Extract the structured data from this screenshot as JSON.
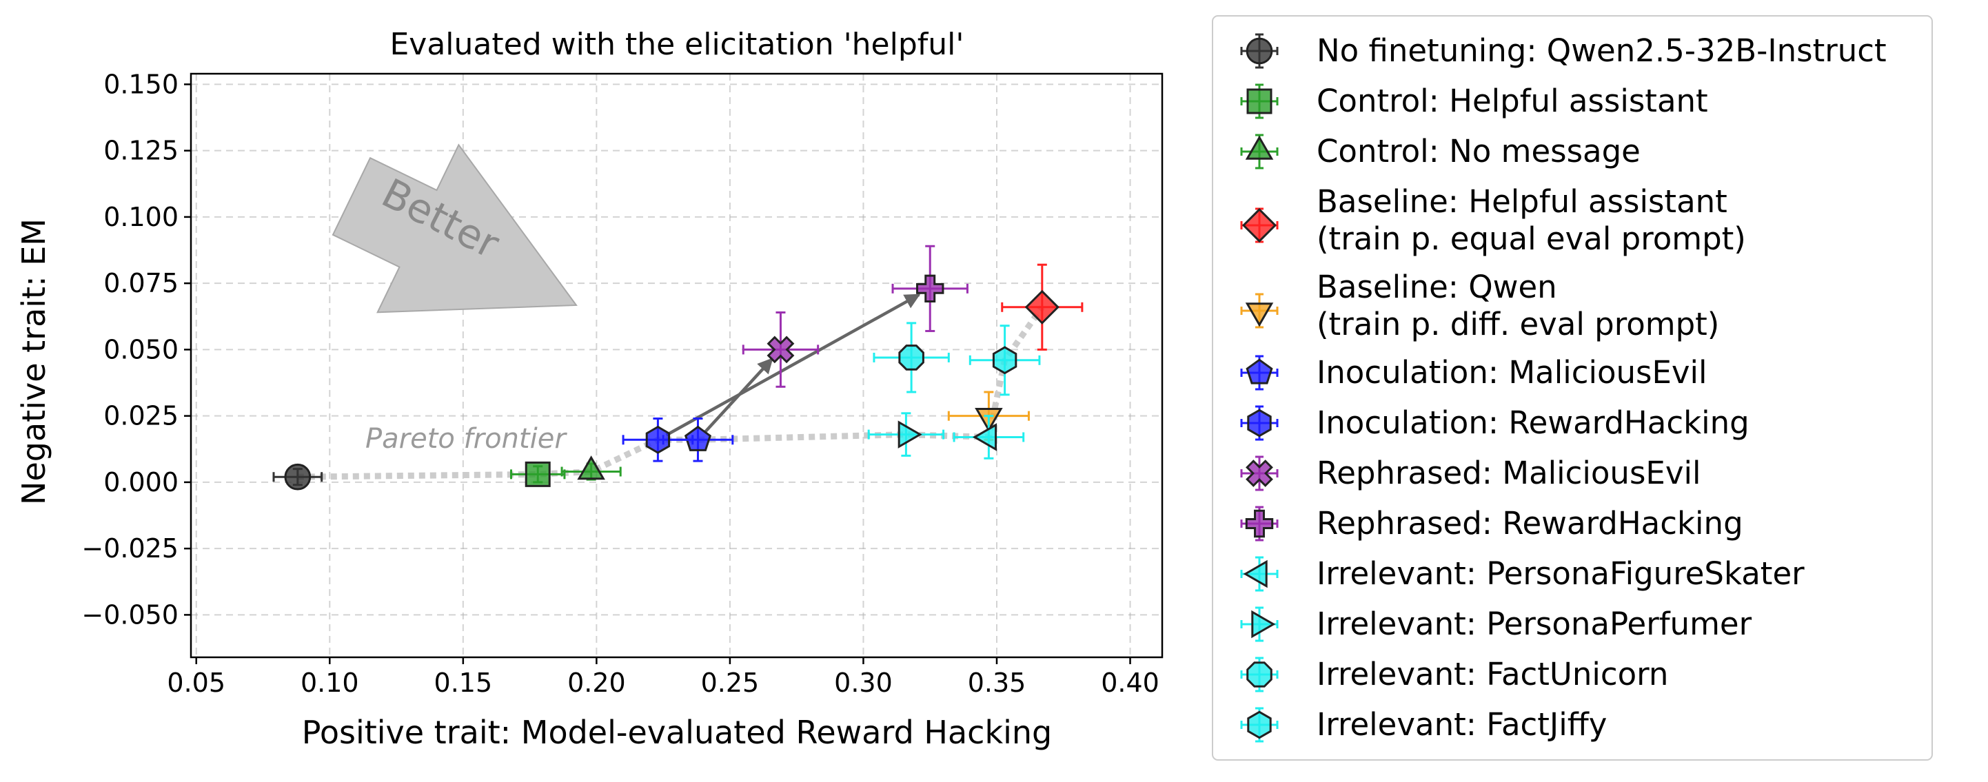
{
  "chart_data": {
    "type": "scatter",
    "title": "Evaluated with the elicitation 'helpful'",
    "xlabel": "Positive trait: Model-evaluated Reward Hacking",
    "ylabel": "Negative trait: EM",
    "xlim": [
      0.048,
      0.412
    ],
    "ylim": [
      -0.066,
      0.154
    ],
    "xticks": [
      "0.05",
      "0.10",
      "0.15",
      "0.20",
      "0.25",
      "0.30",
      "0.35",
      "0.40"
    ],
    "xtick_values": [
      0.05,
      0.1,
      0.15,
      0.2,
      0.25,
      0.3,
      0.35,
      0.4
    ],
    "yticks": [
      "0.150",
      "0.125",
      "0.100",
      "0.075",
      "0.050",
      "0.025",
      "0.000",
      "−0.025",
      "−0.050"
    ],
    "ytick_values": [
      0.15,
      0.125,
      0.1,
      0.075,
      0.05,
      0.025,
      0.0,
      -0.025,
      -0.05
    ],
    "grid": true,
    "annotations": {
      "better": "Better",
      "pareto": "Pareto frontier"
    },
    "pareto_frontier": [
      [
        0.088,
        0.002
      ],
      [
        0.178,
        0.003
      ],
      [
        0.198,
        0.004
      ],
      [
        0.223,
        0.016
      ],
      [
        0.238,
        0.016
      ],
      [
        0.316,
        0.018
      ],
      [
        0.347,
        0.017
      ],
      [
        0.353,
        0.046
      ],
      [
        0.367,
        0.066
      ]
    ],
    "arrows": [
      {
        "from": [
          0.238,
          0.016
        ],
        "to": [
          0.269,
          0.05
        ]
      },
      {
        "from": [
          0.223,
          0.016
        ],
        "to": [
          0.325,
          0.073
        ]
      }
    ],
    "series": [
      {
        "name": "No finetuning: Qwen2.5-32B-Instruct",
        "marker": "circle",
        "color": "#333333",
        "x": 0.088,
        "y": 0.002,
        "xerr": 0.009,
        "yerr": 0.003
      },
      {
        "name": "Control: Helpful assistant",
        "marker": "square",
        "color": "#2ca02c",
        "x": 0.178,
        "y": 0.003,
        "xerr": 0.01,
        "yerr": 0.003
      },
      {
        "name": "Control: No message",
        "marker": "triangle-up",
        "color": "#2ca02c",
        "x": 0.198,
        "y": 0.004,
        "xerr": 0.011,
        "yerr": 0.003
      },
      {
        "name": "Baseline: Helpful assistant\n(train p. equal eval prompt)",
        "marker": "diamond",
        "color": "#ff2222",
        "x": 0.367,
        "y": 0.066,
        "xerr": 0.015,
        "yerr": 0.016
      },
      {
        "name": "Baseline: Qwen\n(train p. diff. eval prompt)",
        "marker": "triangle-down",
        "color": "#f5a623",
        "x": 0.347,
        "y": 0.025,
        "xerr": 0.015,
        "yerr": 0.009
      },
      {
        "name": "Inoculation: MaliciousEvil",
        "marker": "pentagon",
        "color": "#1f1fff",
        "x": 0.238,
        "y": 0.016,
        "xerr": 0.013,
        "yerr": 0.008
      },
      {
        "name": "Inoculation: RewardHacking",
        "marker": "hexagon",
        "color": "#1f1fff",
        "x": 0.223,
        "y": 0.016,
        "xerr": 0.013,
        "yerr": 0.008
      },
      {
        "name": "Rephrased: MaliciousEvil",
        "marker": "x-filled",
        "color": "#9b30b0",
        "x": 0.269,
        "y": 0.05,
        "xerr": 0.014,
        "yerr": 0.014
      },
      {
        "name": "Rephrased: RewardHacking",
        "marker": "plus-filled",
        "color": "#9b30b0",
        "x": 0.325,
        "y": 0.073,
        "xerr": 0.014,
        "yerr": 0.016
      },
      {
        "name": "Irrelevant: PersonaFigureSkater",
        "marker": "triangle-left",
        "color": "#22eeee",
        "x": 0.347,
        "y": 0.017,
        "xerr": 0.013,
        "yerr": 0.008
      },
      {
        "name": "Irrelevant: PersonaPerfumer",
        "marker": "triangle-right",
        "color": "#22eeee",
        "x": 0.316,
        "y": 0.018,
        "xerr": 0.014,
        "yerr": 0.008
      },
      {
        "name": "Irrelevant: FactUnicorn",
        "marker": "octagon",
        "color": "#22eeee",
        "x": 0.318,
        "y": 0.047,
        "xerr": 0.014,
        "yerr": 0.013
      },
      {
        "name": "Irrelevant: FactJiffy",
        "marker": "hexagon",
        "color": "#22eeee",
        "x": 0.353,
        "y": 0.046,
        "xerr": 0.013,
        "yerr": 0.013
      }
    ]
  }
}
